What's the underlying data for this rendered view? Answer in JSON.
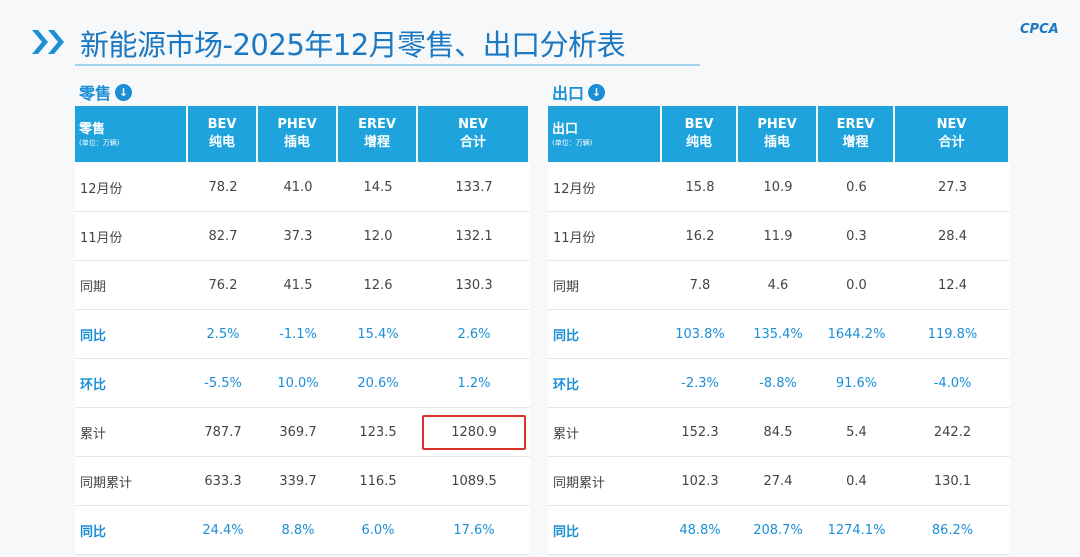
{
  "header": {
    "title": "新能源市场-2025年12月零售、出口分析表",
    "logo": "CPCA"
  },
  "tables": [
    {
      "section": "零售",
      "columns": [
        [
          "零售",
          "(单位：万辆)"
        ],
        [
          "BEV",
          "纯电"
        ],
        [
          "PHEV",
          "插电"
        ],
        [
          "EREV",
          "增程"
        ],
        [
          "NEV",
          "合计"
        ]
      ],
      "rows": [
        [
          "12月份",
          "78.2",
          "41.0",
          "14.5",
          "133.7"
        ],
        [
          "11月份",
          "82.7",
          "37.3",
          "12.0",
          "132.1"
        ],
        [
          "同期",
          "76.2",
          "41.5",
          "12.6",
          "130.3"
        ],
        [
          "同比",
          "2.5%",
          "-1.1%",
          "15.4%",
          "2.6%"
        ],
        [
          "环比",
          "-5.5%",
          "10.0%",
          "20.6%",
          "1.2%"
        ],
        [
          "累计",
          "787.7",
          "369.7",
          "123.5",
          "1280.9"
        ],
        [
          "同期累计",
          "633.3",
          "339.7",
          "116.5",
          "1089.5"
        ],
        [
          "同比",
          "24.4%",
          "8.8%",
          "6.0%",
          "17.6%"
        ]
      ]
    },
    {
      "section": "出口",
      "columns": [
        [
          "出口",
          "(单位：万辆)"
        ],
        [
          "BEV",
          "纯电"
        ],
        [
          "PHEV",
          "插电"
        ],
        [
          "EREV",
          "增程"
        ],
        [
          "NEV",
          "合计"
        ]
      ],
      "rows": [
        [
          "12月份",
          "15.8",
          "10.9",
          "0.6",
          "27.3"
        ],
        [
          "11月份",
          "16.2",
          "11.9",
          "0.3",
          "28.4"
        ],
        [
          "同期",
          "7.8",
          "4.6",
          "0.0",
          "12.4"
        ],
        [
          "同比",
          "103.8%",
          "135.4%",
          "1644.2%",
          "119.8%"
        ],
        [
          "环比",
          "-2.3%",
          "-8.8%",
          "91.6%",
          "-4.0%"
        ],
        [
          "累计",
          "152.3",
          "84.5",
          "5.4",
          "242.2"
        ],
        [
          "同期累计",
          "102.3",
          "27.4",
          "0.4",
          "130.1"
        ],
        [
          "同比",
          "48.8%",
          "208.7%",
          "1274.1%",
          "86.2%"
        ]
      ]
    }
  ]
}
